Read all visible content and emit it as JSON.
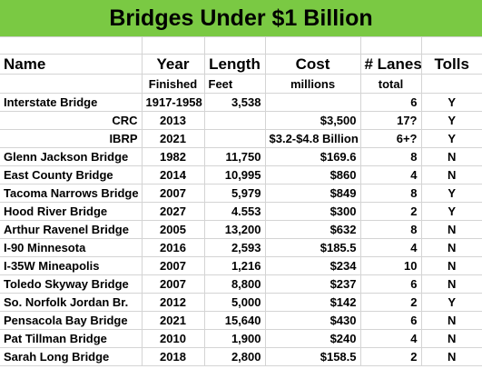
{
  "title": "Bridges Under $1 Billion",
  "headers": {
    "name": "Name",
    "year": "Year",
    "length": "Length",
    "cost": "Cost",
    "lanes": "# Lanes",
    "tolls": "Tolls"
  },
  "subheaders": {
    "year": "Finished",
    "length": "Feet",
    "cost": "millions",
    "lanes": "total"
  },
  "rows": [
    {
      "name": "Interstate Bridge",
      "year": "1917-1958",
      "length": "3,538",
      "cost": "",
      "lanes": "6",
      "tolls": "Y"
    },
    {
      "name": "CRC",
      "year": "2013",
      "length": "",
      "cost": "$3,500",
      "lanes": "17?",
      "tolls": "Y"
    },
    {
      "name": "IBRP",
      "year": "2021",
      "length": "",
      "cost": "$3.2-$4.8 Billion",
      "lanes": "6+?",
      "tolls": "Y"
    },
    {
      "name": "Glenn Jackson Bridge",
      "year": "1982",
      "length": "11,750",
      "cost": "$169.6",
      "lanes": "8",
      "tolls": "N"
    },
    {
      "name": "East County Bridge",
      "year": "2014",
      "length": "10,995",
      "cost": "$860",
      "lanes": "4",
      "tolls": "N"
    },
    {
      "name": "Tacoma Narrows Bridge",
      "year": "2007",
      "length": "5,979",
      "cost": "$849",
      "lanes": "8",
      "tolls": "Y"
    },
    {
      "name": "Hood River Bridge",
      "year": "2027",
      "length": "4.553",
      "cost": "$300",
      "lanes": "2",
      "tolls": "Y"
    },
    {
      "name": "Arthur Ravenel Bridge",
      "year": "2005",
      "length": "13,200",
      "cost": "$632",
      "lanes": "8",
      "tolls": "N"
    },
    {
      "name": "I-90 Minnesota",
      "year": "2016",
      "length": "2,593",
      "cost": "$185.5",
      "lanes": "4",
      "tolls": "N"
    },
    {
      "name": "I-35W Mineapolis",
      "year": "2007",
      "length": "1,216",
      "cost": "$234",
      "lanes": "10",
      "tolls": "N"
    },
    {
      "name": "Toledo Skyway Bridge",
      "year": "2007",
      "length": "8,800",
      "cost": "$237",
      "lanes": "6",
      "tolls": "N"
    },
    {
      "name": "So. Norfolk Jordan Br.",
      "year": "2012",
      "length": "5,000",
      "cost": "$142",
      "lanes": "2",
      "tolls": "Y"
    },
    {
      "name": "Pensacola Bay Bridge",
      "year": "2021",
      "length": "15,640",
      "cost": "$430",
      "lanes": "6",
      "tolls": "N"
    },
    {
      "name": "Pat Tillman Bridge",
      "year": "2010",
      "length": "1,900",
      "cost": "$240",
      "lanes": "4",
      "tolls": "N"
    },
    {
      "name": "Sarah Long Bridge",
      "year": "2018",
      "length": "2,800",
      "cost": "$158.5",
      "lanes": "2",
      "tolls": "N"
    }
  ],
  "colors": {
    "banner": "#7ac943",
    "gridline": "#d4d4d4"
  }
}
